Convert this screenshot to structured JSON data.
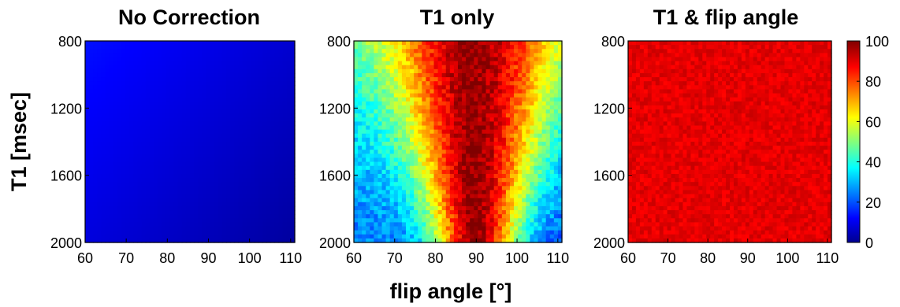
{
  "chart_data": {
    "type": "heatmap",
    "xlabel": "flip angle [°]",
    "ylabel": "T1 [msec]",
    "x_ticks": [
      "60",
      "70",
      "80",
      "90",
      "100",
      "110"
    ],
    "y_ticks": [
      "800",
      "1200",
      "1600",
      "2000"
    ],
    "xlim": [
      60,
      111
    ],
    "ylim": [
      800,
      2000
    ],
    "colorbar": {
      "colormap": "jet",
      "range": [
        0,
        100
      ],
      "ticks": [
        "0",
        "20",
        "40",
        "60",
        "80",
        "100"
      ]
    },
    "panels": [
      {
        "title": "No Correction",
        "description_values": "values near 3-15 across the domain, slightly higher at low T1 / low flip angle"
      },
      {
        "title": "T1 only",
        "center_flip_angle": 90,
        "values_at_T1_800": {
          "x": [
            60,
            70,
            80,
            85,
            90,
            95,
            100,
            110
          ],
          "y": [
            55,
            65,
            75,
            88,
            100,
            88,
            75,
            45
          ]
        },
        "values_at_T1_2000": {
          "x": [
            60,
            70,
            80,
            85,
            90,
            95,
            100,
            110
          ],
          "y": [
            25,
            32,
            50,
            80,
            100,
            80,
            50,
            25
          ]
        }
      },
      {
        "title": "T1 & flip angle",
        "uniform_value": 90
      }
    ]
  }
}
